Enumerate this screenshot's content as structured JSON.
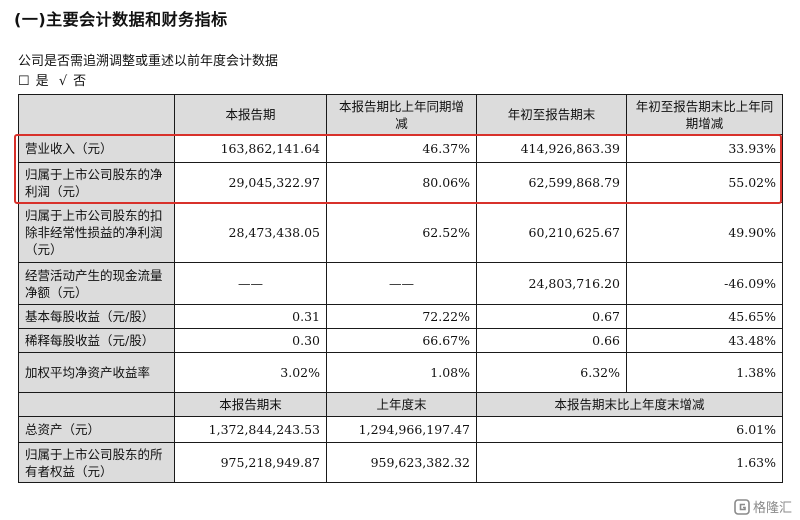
{
  "section_title": "(一)主要会计数据和财务指标",
  "restatement_question": "公司是否需追溯调整或重述以前年度会计数据",
  "options": {
    "yes_box": "☐",
    "yes_label": "是",
    "no_check": "√",
    "no_label": "否"
  },
  "table1": {
    "headers": [
      "",
      "本报告期",
      "本报告期比上年同期增减",
      "年初至报告期末",
      "年初至报告期末比上年同期增减"
    ],
    "rows": [
      {
        "label": "营业收入（元）",
        "values": [
          "163,862,141.64",
          "46.37%",
          "414,926,863.39",
          "33.93%"
        ]
      },
      {
        "label": "归属于上市公司股东的净利润（元）",
        "values": [
          "29,045,322.97",
          "80.06%",
          "62,599,868.79",
          "55.02%"
        ]
      },
      {
        "label": "归属于上市公司股东的扣除非经常性损益的净利润（元）",
        "values": [
          "28,473,438.05",
          "62.52%",
          "60,210,625.67",
          "49.90%"
        ]
      },
      {
        "label": "经营活动产生的现金流量净额（元）",
        "values": [
          "——",
          "——",
          "24,803,716.20",
          "-46.09%"
        ]
      },
      {
        "label": "基本每股收益（元/股）",
        "values": [
          "0.31",
          "72.22%",
          "0.67",
          "45.65%"
        ]
      },
      {
        "label": "稀释每股收益（元/股）",
        "values": [
          "0.30",
          "66.67%",
          "0.66",
          "43.48%"
        ]
      },
      {
        "label": "加权平均净资产收益率",
        "values": [
          "3.02%",
          "1.08%",
          "6.32%",
          "1.38%"
        ]
      }
    ]
  },
  "table2": {
    "headers": [
      "",
      "本报告期末",
      "上年度末",
      "本报告期末比上年度末增减"
    ],
    "rows": [
      {
        "label": "总资产（元）",
        "values": [
          "1,372,844,243.53",
          "1,294,966,197.47",
          "6.01%"
        ]
      },
      {
        "label": "归属于上市公司股东的所有者权益（元）",
        "values": [
          "975,218,949.87",
          "959,623,382.32",
          "1.63%"
        ]
      }
    ]
  },
  "highlight_color": "#d8312b",
  "watermark": {
    "icon": "gelonghui-logo-icon",
    "text": "格隆汇"
  }
}
